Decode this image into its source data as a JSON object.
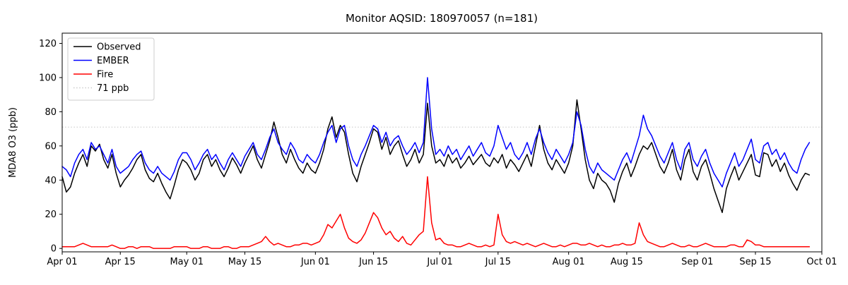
{
  "title": "Monitor AQSID: 180970057 (n=181)",
  "chart_data": {
    "type": "line",
    "title": "Monitor AQSID: 180970057 (n=181)",
    "xlabel": "",
    "ylabel": "MDA8 O3 (ppb)",
    "xlim": [
      0,
      183
    ],
    "ylim": [
      -2,
      126
    ],
    "grid": false,
    "legend_position": "upper-left",
    "yticks": [
      0,
      20,
      40,
      60,
      80,
      100,
      120
    ],
    "xticks": [
      {
        "pos": 0,
        "label": "Apr 01"
      },
      {
        "pos": 14,
        "label": "Apr 15"
      },
      {
        "pos": 30,
        "label": "May 01"
      },
      {
        "pos": 44,
        "label": "May 15"
      },
      {
        "pos": 61,
        "label": "Jun 01"
      },
      {
        "pos": 75,
        "label": "Jun 15"
      },
      {
        "pos": 91,
        "label": "Jul 01"
      },
      {
        "pos": 105,
        "label": "Jul 15"
      },
      {
        "pos": 122,
        "label": "Aug 01"
      },
      {
        "pos": 136,
        "label": "Aug 15"
      },
      {
        "pos": 153,
        "label": "Sep 01"
      },
      {
        "pos": 167,
        "label": "Sep 15"
      },
      {
        "pos": 183,
        "label": "Oct 01"
      }
    ],
    "reference_line": {
      "value": 71,
      "label": "71 ppb",
      "color": "#cccccc",
      "style": "dotted"
    },
    "x_unit": "days since Apr 01",
    "series": [
      {
        "name": "Observed",
        "color": "#000000",
        "values": [
          42,
          33,
          36,
          44,
          50,
          55,
          48,
          60,
          57,
          61,
          52,
          47,
          55,
          44,
          36,
          40,
          43,
          47,
          52,
          55,
          46,
          41,
          39,
          44,
          38,
          33,
          29,
          37,
          46,
          52,
          50,
          46,
          40,
          44,
          52,
          55,
          48,
          52,
          46,
          42,
          47,
          53,
          49,
          44,
          50,
          55,
          60,
          52,
          47,
          55,
          63,
          74,
          65,
          55,
          50,
          58,
          52,
          47,
          44,
          50,
          46,
          44,
          50,
          58,
          70,
          77,
          65,
          72,
          68,
          55,
          44,
          39,
          48,
          55,
          62,
          70,
          68,
          58,
          65,
          55,
          60,
          63,
          55,
          48,
          52,
          58,
          50,
          55,
          85,
          60,
          50,
          52,
          48,
          55,
          50,
          53,
          47,
          50,
          54,
          49,
          52,
          55,
          50,
          48,
          53,
          50,
          55,
          47,
          52,
          49,
          45,
          50,
          55,
          48,
          60,
          72,
          58,
          50,
          46,
          52,
          48,
          44,
          50,
          60,
          87,
          70,
          52,
          40,
          35,
          44,
          40,
          38,
          34,
          27,
          38,
          45,
          50,
          42,
          48,
          55,
          60,
          58,
          62,
          55,
          48,
          44,
          50,
          58,
          46,
          40,
          52,
          58,
          45,
          40,
          48,
          52,
          44,
          35,
          28,
          21,
          35,
          42,
          48,
          40,
          45,
          50,
          55,
          43,
          42,
          56,
          55,
          48,
          52,
          45,
          50,
          43,
          38,
          34,
          40,
          44,
          43
        ]
      },
      {
        "name": "EMBER",
        "color": "#0000ff",
        "values": [
          48,
          46,
          42,
          50,
          55,
          58,
          52,
          62,
          58,
          60,
          55,
          50,
          58,
          48,
          44,
          46,
          48,
          52,
          55,
          57,
          50,
          46,
          44,
          48,
          44,
          42,
          40,
          45,
          52,
          56,
          56,
          52,
          46,
          50,
          55,
          58,
          52,
          55,
          50,
          46,
          52,
          56,
          52,
          48,
          54,
          58,
          62,
          55,
          52,
          58,
          65,
          70,
          62,
          58,
          55,
          62,
          58,
          52,
          50,
          55,
          52,
          50,
          55,
          62,
          68,
          72,
          62,
          70,
          72,
          60,
          52,
          48,
          55,
          60,
          66,
          72,
          70,
          62,
          68,
          60,
          64,
          66,
          60,
          55,
          58,
          62,
          56,
          62,
          100,
          70,
          55,
          58,
          54,
          60,
          55,
          58,
          52,
          56,
          60,
          54,
          58,
          62,
          56,
          54,
          60,
          72,
          65,
          58,
          62,
          55,
          52,
          56,
          62,
          55,
          64,
          70,
          62,
          56,
          52,
          58,
          54,
          50,
          55,
          62,
          80,
          72,
          58,
          48,
          44,
          50,
          46,
          44,
          42,
          40,
          46,
          52,
          56,
          50,
          58,
          66,
          78,
          70,
          66,
          60,
          54,
          50,
          56,
          62,
          52,
          46,
          58,
          62,
          52,
          48,
          54,
          58,
          50,
          44,
          40,
          36,
          44,
          50,
          56,
          48,
          52,
          58,
          64,
          52,
          50,
          60,
          62,
          55,
          58,
          52,
          56,
          50,
          46,
          44,
          52,
          58,
          62
        ]
      },
      {
        "name": "Fire",
        "color": "#ff0000",
        "values": [
          1,
          1,
          1,
          1,
          2,
          3,
          2,
          1,
          1,
          1,
          1,
          1,
          2,
          1,
          0,
          0,
          1,
          1,
          0,
          1,
          1,
          1,
          0,
          0,
          0,
          0,
          0,
          1,
          1,
          1,
          1,
          0,
          0,
          0,
          1,
          1,
          0,
          0,
          0,
          1,
          1,
          0,
          0,
          1,
          1,
          1,
          2,
          3,
          4,
          7,
          4,
          2,
          3,
          2,
          1,
          1,
          2,
          2,
          3,
          3,
          2,
          3,
          4,
          8,
          14,
          12,
          16,
          20,
          12,
          6,
          4,
          3,
          5,
          9,
          15,
          21,
          18,
          12,
          8,
          10,
          6,
          4,
          7,
          3,
          2,
          5,
          8,
          10,
          42,
          15,
          5,
          6,
          3,
          2,
          2,
          1,
          1,
          2,
          3,
          2,
          1,
          1,
          2,
          1,
          2,
          20,
          8,
          4,
          3,
          4,
          3,
          2,
          3,
          2,
          1,
          2,
          3,
          2,
          1,
          1,
          2,
          1,
          2,
          3,
          3,
          2,
          2,
          3,
          2,
          1,
          2,
          1,
          1,
          2,
          2,
          3,
          2,
          2,
          3,
          15,
          8,
          4,
          3,
          2,
          1,
          1,
          2,
          3,
          2,
          1,
          1,
          2,
          1,
          1,
          2,
          3,
          2,
          1,
          1,
          1,
          1,
          2,
          2,
          1,
          1,
          5,
          4,
          2,
          2,
          1,
          1,
          1,
          1,
          1,
          1,
          1,
          1,
          1,
          1,
          1,
          1
        ]
      }
    ],
    "legend_entries": [
      "Observed",
      "EMBER",
      "Fire",
      "71 ppb"
    ]
  }
}
